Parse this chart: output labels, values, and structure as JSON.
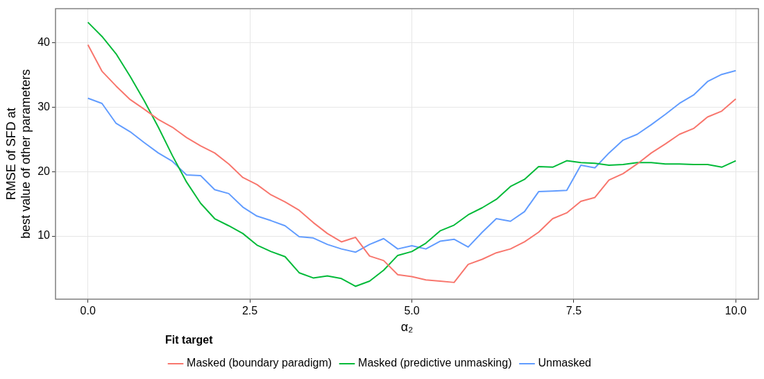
{
  "chart_data": {
    "type": "line",
    "xlabel": "α₂",
    "ylabel": "RMSE of SFD at\nbest value of other parameters",
    "legend_title": "Fit target",
    "legend": "bottom",
    "grid": true,
    "marker": "none",
    "line_style": "solid",
    "x": [
      0,
      0.217,
      0.435,
      0.652,
      0.87,
      1.087,
      1.304,
      1.522,
      1.739,
      1.957,
      2.174,
      2.391,
      2.609,
      2.826,
      3.043,
      3.261,
      3.478,
      3.696,
      3.913,
      4.13,
      4.348,
      4.565,
      4.783,
      5,
      5.217,
      5.435,
      5.652,
      5.87,
      6.087,
      6.304,
      6.522,
      6.739,
      6.957,
      7.174,
      7.391,
      7.609,
      7.826,
      8.043,
      8.261,
      8.478,
      8.696,
      8.913,
      9.13,
      9.348,
      9.565,
      9.783,
      10
    ],
    "xlim": [
      -0.5,
      10.35
    ],
    "xticks": [
      {
        "value": 0,
        "label": "0.0"
      },
      {
        "value": 2.5,
        "label": "2.5"
      },
      {
        "value": 5,
        "label": "5.0"
      },
      {
        "value": 7.5,
        "label": "7.5"
      },
      {
        "value": 10,
        "label": "10.0"
      }
    ],
    "ylim": [
      0.2,
      45.3
    ],
    "yticks": [
      10,
      20,
      30,
      40
    ],
    "series": [
      {
        "name": "Masked (boundary paradigm)",
        "color": "#f8766d",
        "values": [
          39.7,
          35.6,
          33.3,
          31.2,
          29.7,
          28.1,
          26.9,
          25.3,
          24.0,
          22.9,
          21.2,
          19.1,
          18.0,
          16.4,
          15.3,
          14.0,
          12.1,
          10.4,
          9.1,
          9.8,
          6.9,
          6.2,
          4.0,
          3.7,
          3.2,
          3.0,
          2.8,
          5.6,
          6.4,
          7.4,
          8.0,
          9.1,
          10.6,
          12.7,
          13.6,
          15.4,
          16.0,
          18.7,
          19.7,
          21.2,
          22.9,
          24.3,
          25.8,
          26.7,
          28.5,
          29.4,
          31.3
        ]
      },
      {
        "name": "Masked (predictive unmasking)",
        "color": "#00ba38",
        "values": [
          43.2,
          41.0,
          38.3,
          34.8,
          31.0,
          26.9,
          22.5,
          18.4,
          15.1,
          12.7,
          11.6,
          10.4,
          8.6,
          7.6,
          6.8,
          4.3,
          3.5,
          3.8,
          3.4,
          2.2,
          3.0,
          4.7,
          7.0,
          7.6,
          8.9,
          10.8,
          11.7,
          13.3,
          14.4,
          15.7,
          17.7,
          18.8,
          20.8,
          20.7,
          21.7,
          21.4,
          21.3,
          21.0,
          21.1,
          21.4,
          21.4,
          21.2,
          21.2,
          21.1,
          21.1,
          20.7,
          21.7
        ]
      },
      {
        "name": "Unmasked",
        "color": "#619cff",
        "values": [
          31.4,
          30.6,
          27.5,
          26.2,
          24.5,
          22.9,
          21.6,
          19.5,
          19.4,
          17.2,
          16.6,
          14.5,
          13.1,
          12.4,
          11.6,
          9.9,
          9.7,
          8.7,
          8.0,
          7.5,
          8.7,
          9.6,
          8.0,
          8.5,
          8.0,
          9.2,
          9.5,
          8.3,
          10.6,
          12.7,
          12.3,
          13.8,
          16.9,
          17.0,
          17.1,
          21.0,
          20.6,
          22.9,
          24.9,
          25.8,
          27.3,
          28.9,
          30.6,
          31.9,
          34.0,
          35.1,
          35.7
        ]
      }
    ]
  }
}
